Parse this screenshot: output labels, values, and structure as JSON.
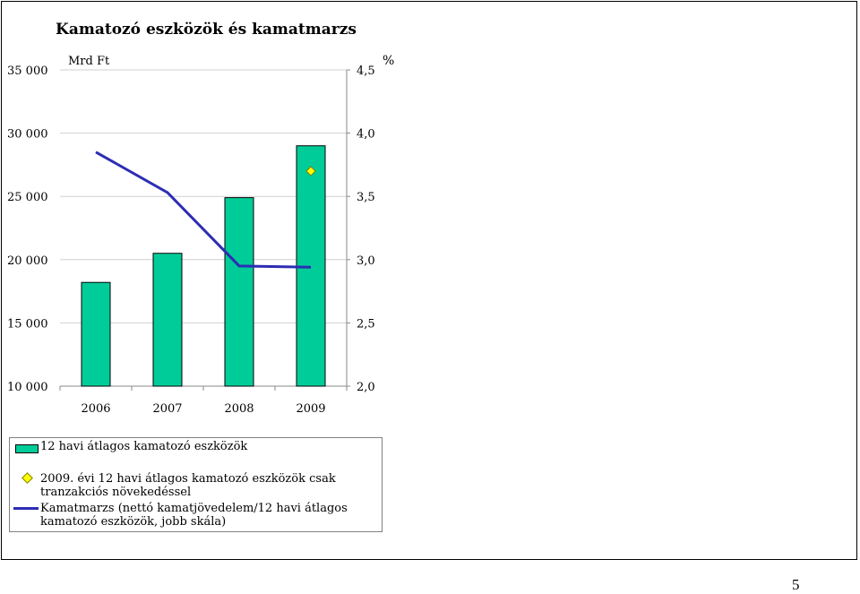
{
  "chart_data": {
    "type": "bar",
    "title": "Kamatozó eszközök és kamatmarzs",
    "left_unit": "Mrd Ft",
    "right_unit": "%",
    "categories": [
      "2006",
      "2007",
      "2008",
      "2009"
    ],
    "y_left": {
      "min": 10000,
      "max": 35000,
      "ticks": [
        "10 000",
        "15 000",
        "20 000",
        "25 000",
        "30 000",
        "35 000"
      ]
    },
    "y_right": {
      "min": 2.0,
      "max": 4.5,
      "ticks": [
        "2,0",
        "2,5",
        "3,0",
        "3,5",
        "4,0",
        "4,5"
      ]
    },
    "grid": true,
    "series": [
      {
        "name": "12 havi átlagos kamatozó eszközök",
        "kind": "bar",
        "axis": "left",
        "color": "#00cc99",
        "values": [
          18200,
          20500,
          24900,
          29000
        ]
      },
      {
        "name": "2009. évi 12 havi átlagos kamatozó eszközök csak tranzakciós növekedéssel",
        "kind": "marker",
        "axis": "left",
        "color": "#ffff00",
        "values": [
          null,
          null,
          null,
          27000
        ]
      },
      {
        "name": "Kamatmarzs (nettó kamatjövedelem/12 havi átlagos kamatozó eszközök, jobb skála)",
        "kind": "line",
        "axis": "right",
        "color": "#2d2db4",
        "values": [
          3.85,
          3.53,
          2.95,
          2.94
        ]
      }
    ],
    "legend_position": "bottom"
  },
  "page_number": "5"
}
